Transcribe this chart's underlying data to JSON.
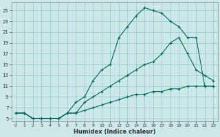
{
  "xlabel": "Humidex (Indice chaleur)",
  "bg_color": "#cce8e8",
  "grid_color": "#99cccc",
  "line_color": "#006655",
  "xlim": [
    -0.5,
    23.5
  ],
  "ylim": [
    4.5,
    26.5
  ],
  "xticks": [
    0,
    1,
    2,
    3,
    4,
    5,
    6,
    7,
    8,
    9,
    10,
    11,
    12,
    13,
    14,
    15,
    16,
    17,
    18,
    19,
    20,
    21,
    22,
    23
  ],
  "yticks": [
    5,
    7,
    9,
    11,
    13,
    15,
    17,
    19,
    21,
    23,
    25
  ],
  "line1_x": [
    0,
    1,
    2,
    3,
    4,
    5,
    6,
    7,
    8,
    9,
    10,
    11,
    12,
    13,
    14,
    15,
    16,
    17,
    18,
    19,
    20,
    21,
    22,
    23
  ],
  "line1_y": [
    6,
    6,
    5,
    5,
    5,
    5,
    6,
    8,
    9,
    12,
    14,
    15,
    20,
    22,
    24,
    25.5,
    25,
    24.5,
    23,
    22,
    20,
    20,
    11,
    11
  ],
  "line2_x": [
    0,
    1,
    2,
    3,
    4,
    5,
    6,
    7,
    8,
    9,
    10,
    11,
    12,
    13,
    14,
    15,
    16,
    17,
    18,
    19,
    20,
    21,
    22,
    23
  ],
  "line2_y": [
    6,
    6,
    5,
    5,
    5,
    5,
    6,
    6,
    8,
    9,
    10,
    11,
    12,
    13,
    14,
    15,
    15.5,
    17,
    19,
    20,
    17,
    14,
    13,
    12
  ],
  "line3_x": [
    0,
    1,
    2,
    3,
    4,
    5,
    6,
    7,
    8,
    9,
    10,
    11,
    12,
    13,
    14,
    15,
    16,
    17,
    18,
    19,
    20,
    21,
    22,
    23
  ],
  "line3_y": [
    6,
    6,
    5,
    5,
    5,
    5,
    6,
    6,
    6.5,
    7,
    7.5,
    8,
    8.5,
    9,
    9.5,
    9.5,
    10,
    10,
    10.5,
    10.5,
    11,
    11,
    11,
    11
  ]
}
